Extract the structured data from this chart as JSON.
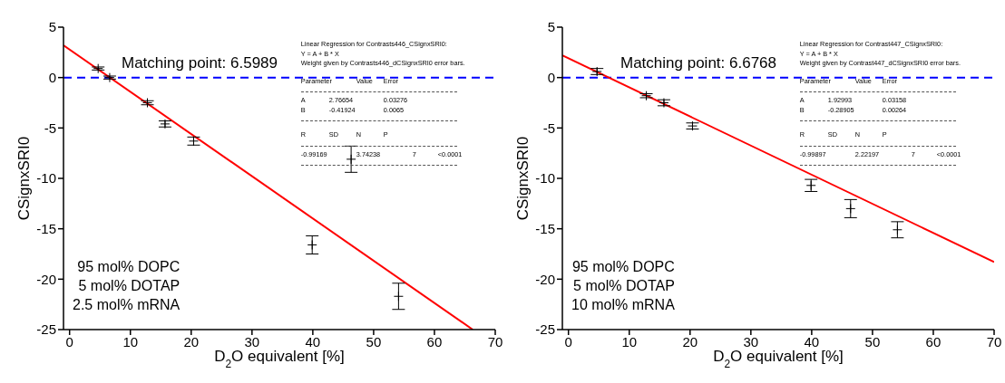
{
  "chart_data": [
    {
      "type": "scatter",
      "xlabel": "D$_{2}$O equivalent [%]",
      "ylabel": "CSignxSRI0",
      "xlim": [
        -1,
        70
      ],
      "xticks": [
        0,
        10,
        20,
        30,
        40,
        50,
        60,
        70
      ],
      "ylim": [
        -25,
        5
      ],
      "yticks": [
        -25,
        -20,
        -15,
        -10,
        -5,
        0,
        5
      ],
      "grid": false,
      "legend": false,
      "series": [
        {
          "marker": "cross",
          "color": "#000000",
          "x": [
            4.7,
            6.6,
            12.8,
            15.7,
            20.4,
            39.9,
            46.3,
            54.1
          ],
          "values": [
            0.9,
            0,
            -2.5,
            -4.6,
            -6.3,
            -16.6,
            -8.1,
            -21.7
          ],
          "errors": [
            0.15,
            0.15,
            0.2,
            0.3,
            0.4,
            0.9,
            1.3,
            1.3
          ]
        },
        {
          "type": "line",
          "color": "#ff0000",
          "x": [
            -1,
            66.3
          ],
          "values": [
            3.2,
            -25
          ]
        }
      ],
      "ref_lines": [
        {
          "axis": "y",
          "value": 0,
          "color": "#0000ff",
          "line_style": "dashed"
        }
      ],
      "annotations": [
        "Matching point: 6.5989",
        "Linear Regression for Contrasts446_CSignxSRI0:",
        "Y = A + B * X",
        "Weight given by Contrasts446_dCSignxSRI0 error bars.",
        "Parameter\tValue\tError",
        "A\t2.76654\t0.03276",
        "B\t-0.41924\t0.0065",
        "R\tSD\tN\tP",
        "-0.99169\t3.74238\t7\t<0.0001",
        "95 mol% DOPC",
        "5 mol% DOTAP",
        "2.5 mol% mRNA"
      ]
    },
    {
      "type": "scatter",
      "xlabel": "D$_{2}$O equivalent [%]",
      "ylabel": "CSignxSRI0",
      "xlim": [
        -1,
        70
      ],
      "xticks": [
        0,
        10,
        20,
        30,
        40,
        50,
        60,
        70
      ],
      "ylim": [
        -25,
        5
      ],
      "yticks": [
        -25,
        -20,
        -15,
        -10,
        -5,
        0,
        5
      ],
      "grid": false,
      "legend": false,
      "series": [
        {
          "marker": "cross",
          "color": "#000000",
          "x": [
            4.7,
            12.8,
            15.7,
            20.4,
            39.9,
            46.4,
            54.1
          ],
          "values": [
            0.6,
            -1.8,
            -2.5,
            -4.8,
            -10.7,
            -13.0,
            -15.1
          ],
          "errors": [
            0.3,
            0.2,
            0.3,
            0.3,
            0.6,
            0.9,
            0.8
          ]
        },
        {
          "type": "line",
          "color": "#ff0000",
          "x": [
            -1,
            70
          ],
          "values": [
            2.2,
            -18.3
          ]
        }
      ],
      "ref_lines": [
        {
          "axis": "y",
          "value": 0,
          "color": "#0000ff",
          "line_style": "dashed"
        }
      ],
      "annotations": [
        "Matching point: 6.6768",
        "Linear Regression for Contrast447_CSignxSRI0:",
        "Y = A + B * X",
        "Weight given by Contrast447_dCSignxSRI0 error bars.",
        "Parameter\tValue\tError",
        "A\t1.92993\t0.03158",
        "B\t-0.28905\t0.00264",
        "R\tSD\tN\tP",
        "-0.99897\t2.22197\t7\t<0.0001",
        "95 mol% DOPC",
        "5 mol% DOTAP",
        "10 mol% mRNA"
      ]
    }
  ]
}
